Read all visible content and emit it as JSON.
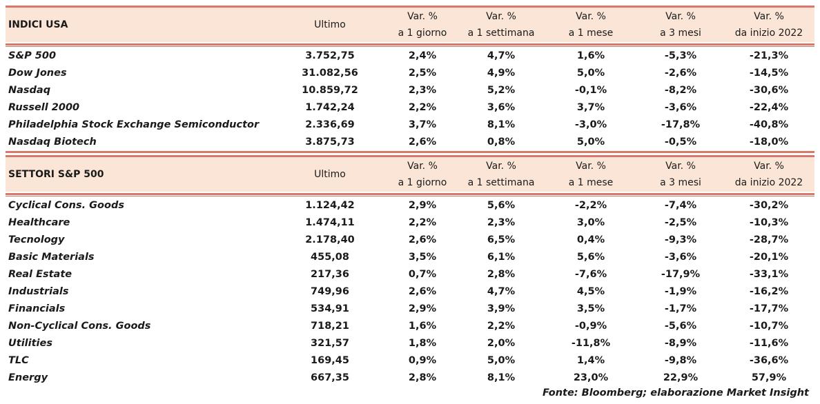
{
  "colors": {
    "header_bg": "#fbe5d6",
    "rule": "#d9776a"
  },
  "columns": [
    {
      "l1": "Ultimo",
      "l2": ""
    },
    {
      "l1": "Var. %",
      "l2": "a 1 giorno"
    },
    {
      "l1": "Var. %",
      "l2": "a 1 settimana"
    },
    {
      "l1": "Var. %",
      "l2": "a 1 mese"
    },
    {
      "l1": "Var. %",
      "l2": "a 3 mesi"
    },
    {
      "l1": "Var. %",
      "l2": "da inizio 2022"
    }
  ],
  "sections": [
    {
      "title": "INDICI USA",
      "rows": [
        [
          "S&P 500",
          "3.752,75",
          "2,4%",
          "4,7%",
          "1,6%",
          "-5,3%",
          "-21,3%"
        ],
        [
          "Dow Jones",
          "31.082,56",
          "2,5%",
          "4,9%",
          "5,0%",
          "-2,6%",
          "-14,5%"
        ],
        [
          "Nasdaq",
          "10.859,72",
          "2,3%",
          "5,2%",
          "-0,1%",
          "-8,2%",
          "-30,6%"
        ],
        [
          "Russell 2000",
          "1.742,24",
          "2,2%",
          "3,6%",
          "3,7%",
          "-3,6%",
          "-22,4%"
        ],
        [
          "Philadelphia Stock Exchange Semiconductor",
          "2.336,69",
          "3,7%",
          "8,1%",
          "-3,0%",
          "-17,8%",
          "-40,8%"
        ],
        [
          "Nasdaq Biotech",
          "3.875,73",
          "2,6%",
          "0,8%",
          "5,0%",
          "-0,5%",
          "-18,0%"
        ]
      ]
    },
    {
      "title": "SETTORI S&P 500",
      "rows": [
        [
          "Cyclical Cons. Goods",
          "1.124,42",
          "2,9%",
          "5,6%",
          "-2,2%",
          "-7,4%",
          "-30,2%"
        ],
        [
          "Healthcare",
          "1.474,11",
          "2,2%",
          "2,3%",
          "3,0%",
          "-2,5%",
          "-10,3%"
        ],
        [
          "Tecnology",
          "2.178,40",
          "2,6%",
          "6,5%",
          "0,4%",
          "-9,3%",
          "-28,7%"
        ],
        [
          "Basic Materials",
          "455,08",
          "3,5%",
          "6,1%",
          "5,6%",
          "-3,6%",
          "-20,1%"
        ],
        [
          "Real Estate",
          "217,36",
          "0,7%",
          "2,8%",
          "-7,6%",
          "-17,9%",
          "-33,1%"
        ],
        [
          "Industrials",
          "749,96",
          "2,6%",
          "4,7%",
          "4,5%",
          "-1,9%",
          "-16,2%"
        ],
        [
          "Financials",
          "534,91",
          "2,9%",
          "3,9%",
          "3,5%",
          "-1,7%",
          "-17,7%"
        ],
        [
          "Non-Cyclical Cons. Goods",
          "718,21",
          "1,6%",
          "2,2%",
          "-0,9%",
          "-5,6%",
          "-10,7%"
        ],
        [
          "Utilities",
          "321,57",
          "1,8%",
          "2,0%",
          "-11,8%",
          "-8,9%",
          "-11,6%"
        ],
        [
          "TLC",
          "169,45",
          "0,9%",
          "5,0%",
          "1,4%",
          "-9,8%",
          "-36,6%"
        ],
        [
          "Energy",
          "667,35",
          "2,8%",
          "8,1%",
          "23,0%",
          "22,9%",
          "57,9%"
        ]
      ]
    }
  ],
  "footer": "Fonte: Bloomberg; elaborazione Market Insight"
}
